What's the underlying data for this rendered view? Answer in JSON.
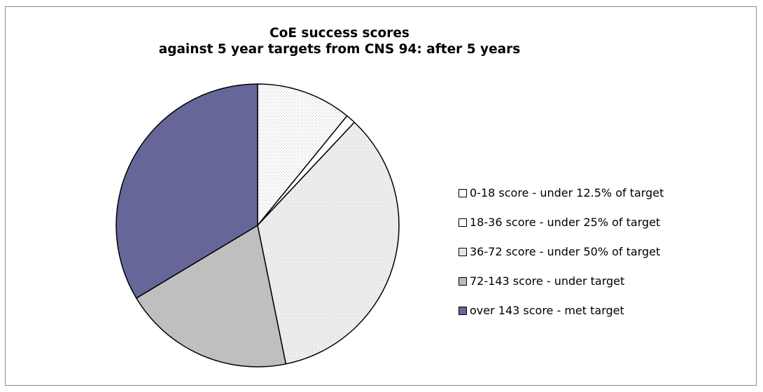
{
  "chart_data": {
    "type": "pie",
    "title_lines": [
      "CoE success scores",
      "against 5 year targets from CNS 94: after 5 years"
    ],
    "legend_position": "right",
    "start_angle_deg": 0,
    "direction": "clockwise",
    "slices": [
      {
        "label": "0-18 score - under 12.5% of target",
        "value": 10.9,
        "color": "#ffffff",
        "pattern": "dots-light"
      },
      {
        "label": "18-36 score - under 25% of target",
        "value": 1.1,
        "color": "#ffffff",
        "pattern": "none"
      },
      {
        "label": "36-72 score - under 50% of target",
        "value": 34.8,
        "color": "#e9e9e9",
        "pattern": "dots-medium"
      },
      {
        "label": "72-143 score - under target",
        "value": 19.6,
        "color": "#c9c9c9",
        "pattern": "dots-dense"
      },
      {
        "label": "over 143 score - met target",
        "value": 33.6,
        "color": "#666699",
        "pattern": "none"
      }
    ]
  }
}
